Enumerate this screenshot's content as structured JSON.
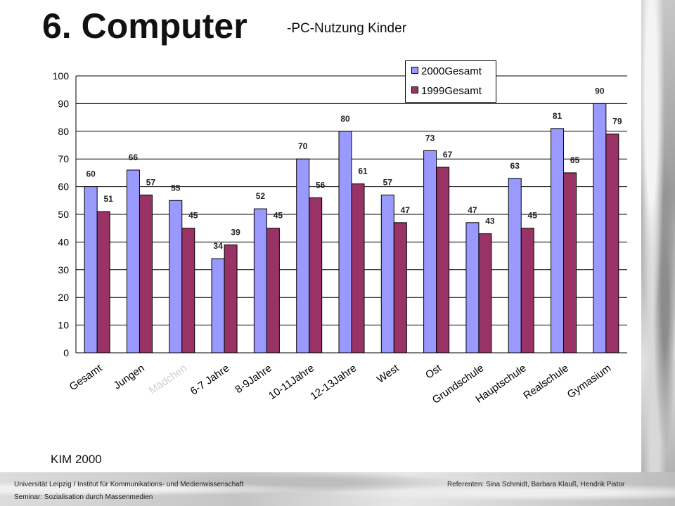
{
  "slide": {
    "title": "6. Computer",
    "subtitle": "-PC-Nutzung Kinder",
    "source": "KIM 2000",
    "footer_left_1": "Universität Leipzig / Institut für Kommunikations- und Medienwissenschaft",
    "footer_left_2": "Seminar: Sozialisation durch Massenmedien",
    "footer_right": "Referenten: Sina Schmidt, Barbara Klauß, Hendrik Pistor"
  },
  "chart_data": {
    "type": "bar",
    "categories": [
      "Gesamt",
      "Jungen",
      "Mädchen",
      "6-7 Jahre",
      "8-9Jahre",
      "10-11Jahre",
      "12-13Jahre",
      "West",
      "Ost",
      "Grundschule",
      "Hauptschule",
      "Realschule",
      "Gymasium"
    ],
    "series": [
      {
        "name": "2000Gesamt",
        "color": "#9999ff",
        "values": [
          60,
          66,
          55,
          34,
          52,
          70,
          80,
          57,
          73,
          47,
          63,
          81,
          90
        ]
      },
      {
        "name": "1999Gesamt",
        "color": "#993366",
        "values": [
          51,
          57,
          45,
          39,
          45,
          56,
          61,
          47,
          67,
          43,
          45,
          65,
          79
        ]
      }
    ],
    "ylim": [
      0,
      100
    ],
    "yticks": [
      0,
      10,
      20,
      30,
      40,
      50,
      60,
      70,
      80,
      90,
      100
    ],
    "grid": true,
    "legend": "top-right"
  }
}
